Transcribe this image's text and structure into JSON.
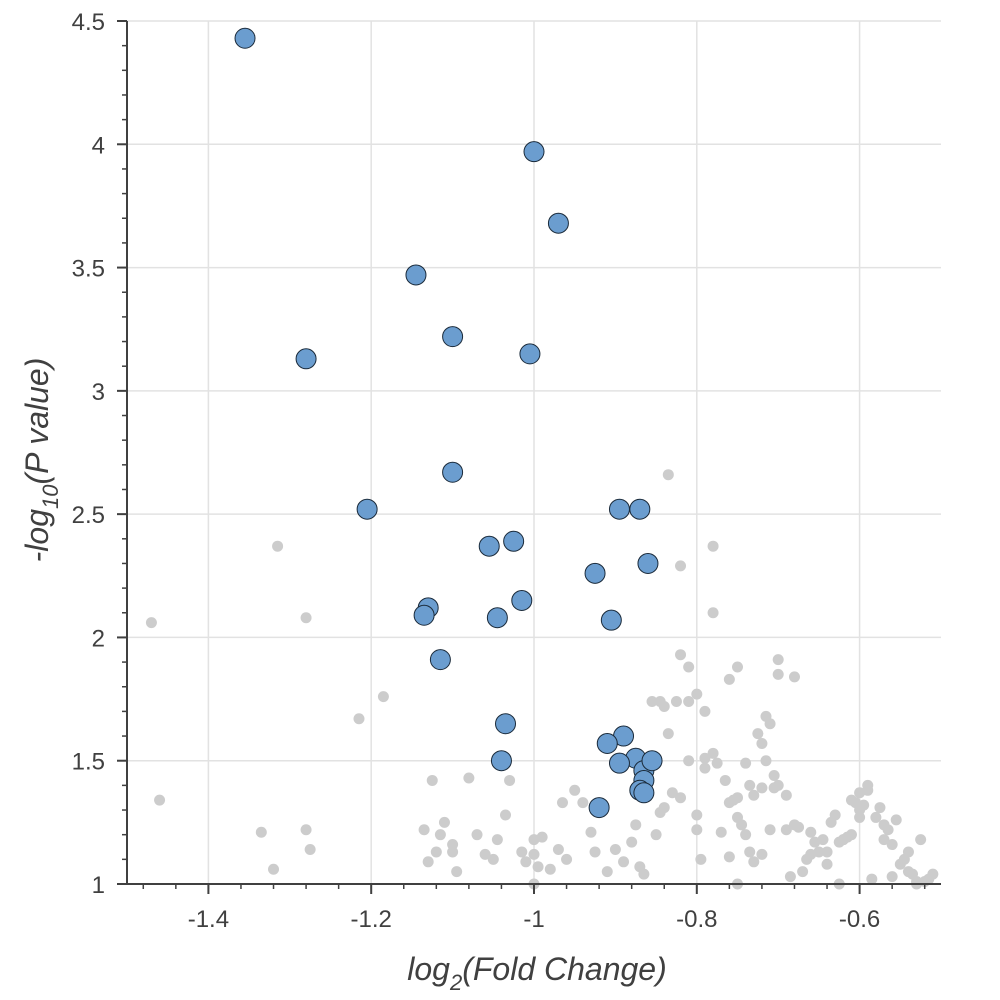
{
  "chart_data": {
    "type": "scatter",
    "xlabel": {
      "prefix": "log",
      "sub": "2",
      "suffix": "(Fold Change)"
    },
    "ylabel": {
      "prefix": "-log",
      "sub": "10",
      "suffix": "(P value)"
    },
    "xlim": [
      -1.5,
      -0.5
    ],
    "ylim": [
      1,
      4.5
    ],
    "x_ticks": [
      {
        "value": -1.4,
        "label": "-1.4"
      },
      {
        "value": -1.2,
        "label": "-1.2"
      },
      {
        "value": -1.0,
        "label": "-1"
      },
      {
        "value": -0.8,
        "label": "-0.8"
      },
      {
        "value": -0.6,
        "label": "-0.6"
      }
    ],
    "y_ticks": [
      {
        "value": 1,
        "label": "1"
      },
      {
        "value": 1.5,
        "label": "1.5"
      },
      {
        "value": 2,
        "label": "2"
      },
      {
        "value": 2.5,
        "label": "2.5"
      },
      {
        "value": 3,
        "label": "3"
      },
      {
        "value": 3.5,
        "label": "3.5"
      },
      {
        "value": 4,
        "label": "4"
      },
      {
        "value": 4.5,
        "label": "4.5"
      }
    ],
    "grid": true,
    "colors": {
      "highlight_fill": "#6b9dcf",
      "highlight_stroke": "#1a2a3a",
      "background_points": "#cccccc",
      "grid": "#e2e2e2",
      "axis": "#404040"
    },
    "series": [
      {
        "x": [
          -1.47,
          -1.46,
          -1.335,
          -1.32,
          -1.315,
          -1.28,
          -1.28,
          -1.275,
          -1.215,
          -1.185,
          -1.135,
          -1.13,
          -1.125,
          -1.12,
          -1.115,
          -1.11,
          -1.1,
          -1.1,
          -1.095,
          -1.08,
          -1.07,
          -1.06,
          -1.05,
          -1.045,
          -1.035,
          -1.03,
          -1.015,
          -1.01,
          -1.0,
          -1.0,
          -1.0,
          -0.995,
          -0.99,
          -0.98,
          -0.97,
          -0.965,
          -0.96,
          -0.95,
          -0.94,
          -0.93,
          -0.925,
          -0.91,
          -0.9,
          -0.89,
          -0.88,
          -0.875,
          -0.87,
          -0.865,
          -0.855,
          -0.85,
          -0.845,
          -0.84,
          -0.835,
          -0.83,
          -0.825,
          -0.82,
          -0.82,
          -0.81,
          -0.81,
          -0.8,
          -0.8,
          -0.8,
          -0.795,
          -0.79,
          -0.79,
          -0.78,
          -0.78,
          -0.775,
          -0.77,
          -0.765,
          -0.76,
          -0.76,
          -0.755,
          -0.75,
          -0.75,
          -0.745,
          -0.74,
          -0.735,
          -0.73,
          -0.73,
          -0.725,
          -0.72,
          -0.72,
          -0.715,
          -0.71,
          -0.705,
          -0.7,
          -0.69,
          -0.69,
          -0.685,
          -0.68,
          -0.675,
          -0.67,
          -0.665,
          -0.66,
          -0.655,
          -0.65,
          -0.645,
          -0.64,
          -0.635,
          -0.63,
          -0.625,
          -0.62,
          -0.615,
          -0.61,
          -0.605,
          -0.6,
          -0.6,
          -0.595,
          -0.59,
          -0.585,
          -0.58,
          -0.575,
          -0.57,
          -0.565,
          -0.56,
          -0.555,
          -0.55,
          -0.545,
          -0.54,
          -0.535,
          -0.53,
          -0.525,
          -0.52,
          -0.515,
          -0.51,
          -0.82,
          -0.79,
          -0.835,
          -0.81,
          -0.78,
          -0.74,
          -0.735,
          -0.715,
          -0.7,
          -0.705,
          -0.84,
          -0.845,
          -0.76,
          -0.75,
          -0.72,
          -0.71,
          -0.75,
          -0.64,
          -0.625,
          -0.62,
          -0.61,
          -0.6,
          -0.59,
          -0.57,
          -0.66,
          -0.68,
          -0.7,
          -0.56,
          -0.54,
          -0.53
        ],
        "y": [
          2.06,
          1.34,
          1.21,
          1.06,
          2.37,
          2.08,
          1.22,
          1.14,
          1.67,
          1.76,
          1.22,
          1.09,
          1.42,
          1.13,
          1.2,
          1.25,
          1.16,
          1.13,
          1.05,
          1.43,
          1.2,
          1.12,
          1.1,
          1.18,
          1.28,
          1.42,
          1.13,
          1.09,
          1.0,
          1.12,
          1.18,
          1.07,
          1.19,
          1.06,
          1.14,
          1.33,
          1.1,
          1.38,
          1.33,
          1.21,
          1.13,
          1.05,
          1.14,
          1.09,
          1.17,
          1.24,
          1.07,
          1.04,
          1.74,
          1.2,
          1.74,
          1.72,
          2.66,
          1.37,
          1.74,
          2.29,
          1.93,
          1.88,
          1.74,
          1.77,
          1.28,
          1.22,
          1.1,
          1.51,
          1.7,
          2.37,
          2.1,
          1.49,
          1.21,
          1.42,
          1.33,
          1.11,
          1.34,
          1.88,
          1.27,
          1.24,
          1.2,
          1.13,
          1.36,
          1.09,
          1.61,
          1.57,
          1.12,
          1.68,
          1.65,
          1.39,
          1.91,
          1.36,
          1.22,
          1.03,
          1.24,
          1.23,
          1.05,
          1.1,
          1.12,
          1.17,
          1.13,
          1.18,
          1.08,
          1.25,
          1.28,
          1.17,
          1.18,
          1.19,
          1.34,
          1.33,
          1.3,
          1.37,
          1.32,
          1.38,
          1.02,
          1.27,
          1.31,
          1.18,
          1.22,
          1.16,
          1.26,
          1.08,
          1.1,
          1.05,
          1.04,
          1.01,
          1.18,
          1.01,
          1.02,
          1.04,
          1.35,
          1.47,
          1.61,
          1.5,
          1.53,
          1.49,
          1.4,
          1.5,
          1.85,
          1.44,
          1.31,
          1.29,
          1.83,
          1.35,
          1.39,
          1.22,
          1.0,
          1.13,
          1.0,
          1.18,
          1.2,
          1.27,
          1.4,
          1.24,
          1.21,
          1.84,
          1.4,
          1.03,
          1.13,
          1.0
        ]
      },
      {
        "x": [
          -1.355,
          -1.0,
          -0.97,
          -1.145,
          -1.28,
          -1.1,
          -1.005,
          -1.1,
          -1.205,
          -0.895,
          -0.87,
          -1.055,
          -1.025,
          -0.86,
          -0.925,
          -1.13,
          -1.135,
          -1.045,
          -1.015,
          -0.905,
          -1.115,
          -1.035,
          -0.89,
          -0.91,
          -1.04,
          -0.875,
          -0.895,
          -0.865,
          -0.865,
          -0.87,
          -0.865,
          -0.92,
          -0.855
        ],
        "y": [
          4.43,
          3.97,
          3.68,
          3.47,
          3.13,
          3.22,
          3.15,
          2.67,
          2.52,
          2.52,
          2.52,
          2.37,
          2.39,
          2.3,
          2.26,
          2.12,
          2.09,
          2.08,
          2.15,
          2.07,
          1.91,
          1.65,
          1.6,
          1.57,
          1.5,
          1.51,
          1.49,
          1.46,
          1.42,
          1.38,
          1.37,
          1.31,
          1.5
        ]
      }
    ]
  }
}
